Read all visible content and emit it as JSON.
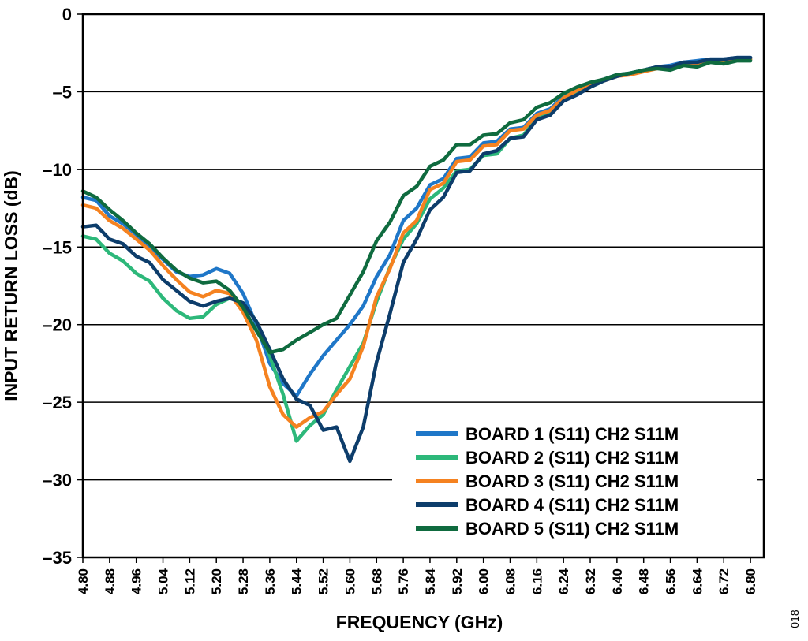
{
  "figure_id": "018",
  "chart_data": {
    "type": "line",
    "title": "",
    "xlabel": "FREQUENCY (GHz)",
    "ylabel": "INPUT RETURN LOSS (dB)",
    "xlim": [
      4.8,
      6.84
    ],
    "ylim": [
      -35,
      0
    ],
    "x_ticks": [
      "4.80",
      "4.88",
      "4.96",
      "5.04",
      "5.12",
      "5.20",
      "5.28",
      "5.36",
      "5.44",
      "5.52",
      "5.60",
      "5.68",
      "5.76",
      "5.84",
      "5.92",
      "6.00",
      "6.08",
      "6.16",
      "6.24",
      "6.32",
      "6.40",
      "6.48",
      "6.56",
      "6.64",
      "6.72",
      "6.80"
    ],
    "y_ticks": [
      "0",
      "–5",
      "–10",
      "–15",
      "–20",
      "–25",
      "–30",
      "–35"
    ],
    "grid": "horizontal",
    "legend_position": "bottom-right",
    "colors": {
      "board1": "#1f77c8",
      "board2": "#2db87a",
      "board3": "#f58220",
      "board4": "#0d3d6b",
      "board5": "#0f6b3f"
    },
    "x": [
      4.8,
      4.84,
      4.88,
      4.92,
      4.96,
      5.0,
      5.04,
      5.08,
      5.12,
      5.16,
      5.2,
      5.24,
      5.28,
      5.32,
      5.36,
      5.4,
      5.44,
      5.48,
      5.52,
      5.56,
      5.6,
      5.64,
      5.68,
      5.72,
      5.76,
      5.8,
      5.84,
      5.88,
      5.92,
      5.96,
      6.0,
      6.04,
      6.08,
      6.12,
      6.16,
      6.2,
      6.24,
      6.28,
      6.32,
      6.36,
      6.4,
      6.44,
      6.48,
      6.52,
      6.56,
      6.6,
      6.64,
      6.68,
      6.72,
      6.76,
      6.8
    ],
    "series": [
      {
        "name": "BOARD 1 (S11) CH2 S11M",
        "color_key": "board1",
        "values": [
          -11.8,
          -12.0,
          -13.0,
          -13.5,
          -14.2,
          -15.0,
          -15.8,
          -16.6,
          -16.9,
          -16.8,
          -16.4,
          -16.7,
          -18.0,
          -20.0,
          -22.5,
          -23.8,
          -24.6,
          -23.2,
          -22.0,
          -21.0,
          -20.0,
          -18.8,
          -16.9,
          -15.5,
          -13.3,
          -12.5,
          -11.0,
          -10.6,
          -9.3,
          -9.2,
          -8.3,
          -8.2,
          -7.4,
          -7.3,
          -6.4,
          -6.1,
          -5.3,
          -4.9,
          -4.5,
          -4.2,
          -3.9,
          -3.8,
          -3.6,
          -3.4,
          -3.3,
          -3.1,
          -3.0,
          -2.9,
          -2.9,
          -2.8,
          -2.8
        ]
      },
      {
        "name": "BOARD 2 (S11) CH2 S11M",
        "color_key": "board2",
        "values": [
          -14.3,
          -14.5,
          -15.4,
          -15.9,
          -16.7,
          -17.2,
          -18.3,
          -19.1,
          -19.6,
          -19.5,
          -18.7,
          -18.3,
          -18.6,
          -19.8,
          -22.0,
          -24.5,
          -27.5,
          -26.5,
          -25.8,
          -24.2,
          -22.7,
          -21.2,
          -18.5,
          -16.3,
          -14.5,
          -13.5,
          -11.9,
          -11.2,
          -10.1,
          -10.0,
          -9.1,
          -9.0,
          -8.0,
          -7.8,
          -6.7,
          -6.4,
          -5.5,
          -5.1,
          -4.7,
          -4.3,
          -4.0,
          -3.8,
          -3.6,
          -3.4,
          -3.4,
          -3.2,
          -3.1,
          -3.0,
          -3.0,
          -2.9,
          -2.9
        ]
      },
      {
        "name": "BOARD 3 (S11) CH2 S11M",
        "color_key": "board3",
        "values": [
          -12.3,
          -12.5,
          -13.3,
          -13.8,
          -14.5,
          -15.2,
          -16.2,
          -17.1,
          -17.9,
          -18.2,
          -17.8,
          -18.0,
          -19.2,
          -21.0,
          -24.0,
          -25.8,
          -26.6,
          -26.0,
          -25.6,
          -24.5,
          -23.5,
          -21.4,
          -18.2,
          -16.4,
          -14.1,
          -13.3,
          -11.3,
          -10.9,
          -9.5,
          -9.4,
          -8.5,
          -8.4,
          -7.5,
          -7.4,
          -6.5,
          -6.2,
          -5.4,
          -4.9,
          -4.5,
          -4.3,
          -4.0,
          -3.9,
          -3.7,
          -3.5,
          -3.4,
          -3.2,
          -3.2,
          -3.0,
          -3.0,
          -2.9,
          -2.9
        ]
      },
      {
        "name": "BOARD 4 (S11) CH2 S11M",
        "color_key": "board4",
        "values": [
          -13.7,
          -13.6,
          -14.5,
          -14.8,
          -15.6,
          -16.0,
          -17.1,
          -17.8,
          -18.5,
          -18.8,
          -18.5,
          -18.3,
          -18.6,
          -19.8,
          -21.6,
          -23.5,
          -24.8,
          -25.2,
          -26.8,
          -26.6,
          -28.8,
          -26.6,
          -22.4,
          -19.3,
          -16.0,
          -14.5,
          -12.6,
          -11.8,
          -10.2,
          -10.1,
          -9.0,
          -8.8,
          -8.0,
          -7.9,
          -6.8,
          -6.5,
          -5.6,
          -5.2,
          -4.7,
          -4.3,
          -4.0,
          -3.8,
          -3.6,
          -3.4,
          -3.4,
          -3.1,
          -3.1,
          -2.9,
          -2.9,
          -2.8,
          -2.8
        ]
      },
      {
        "name": "BOARD 5 (S11) CH2 S11M",
        "color_key": "board5",
        "values": [
          -11.4,
          -11.8,
          -12.6,
          -13.3,
          -14.1,
          -14.8,
          -15.7,
          -16.5,
          -17.0,
          -17.3,
          -17.2,
          -17.8,
          -18.9,
          -20.4,
          -21.8,
          -21.6,
          -21.0,
          -20.5,
          -20.0,
          -19.6,
          -18.1,
          -16.6,
          -14.6,
          -13.4,
          -11.7,
          -11.1,
          -9.8,
          -9.4,
          -8.4,
          -8.4,
          -7.8,
          -7.7,
          -7.0,
          -6.8,
          -6.0,
          -5.7,
          -5.1,
          -4.7,
          -4.4,
          -4.2,
          -3.9,
          -3.8,
          -3.6,
          -3.5,
          -3.6,
          -3.3,
          -3.4,
          -3.1,
          -3.2,
          -3.0,
          -3.0
        ]
      }
    ]
  }
}
